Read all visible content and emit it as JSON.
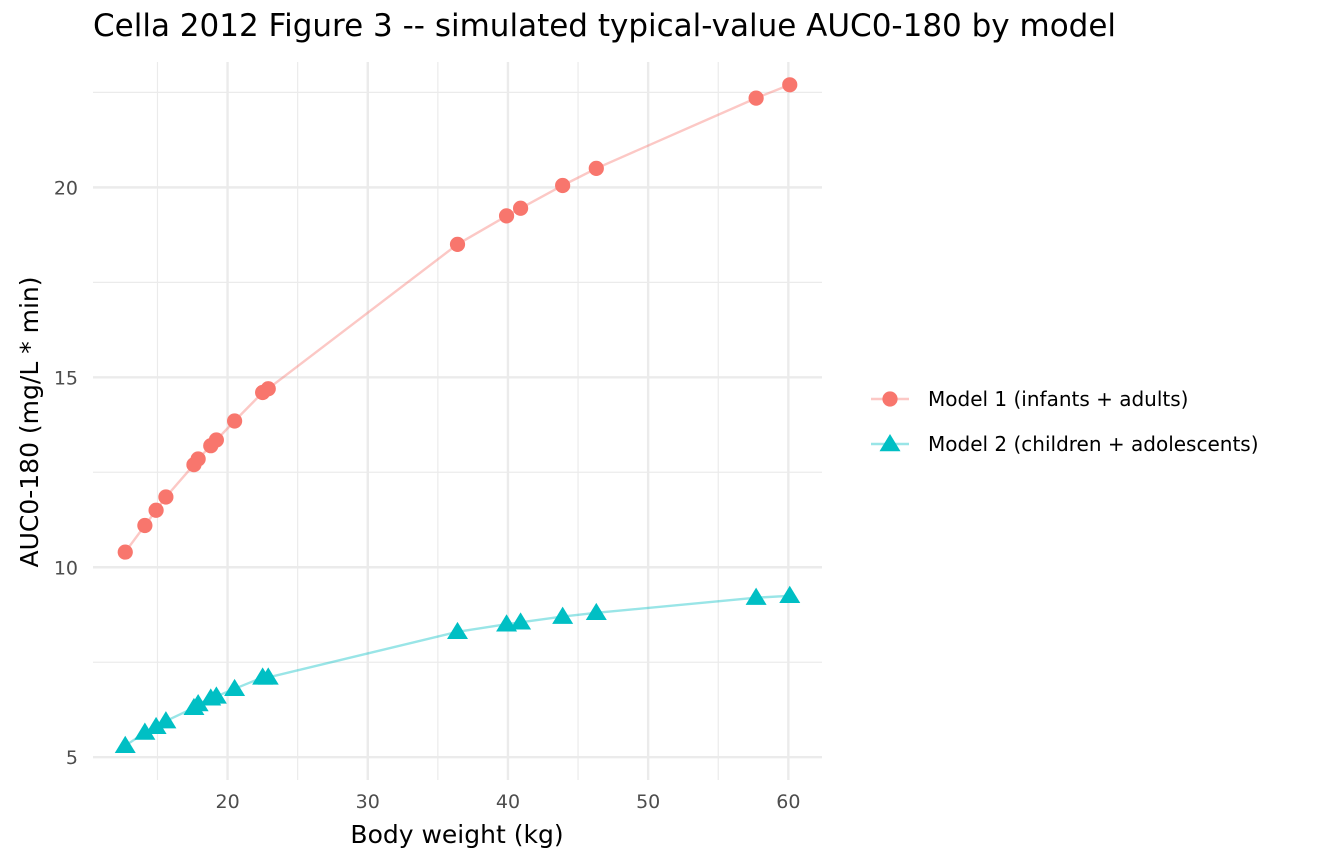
{
  "chart_data": {
    "type": "line",
    "title": "Cella 2012 Figure 3 -- simulated typical-value AUC0-180 by model",
    "xlabel": "Body weight (kg)",
    "ylabel": "AUC0-180 (mg/L * min)",
    "xlim": [
      10.4,
      62.4
    ],
    "ylim": [
      4.4,
      23.3
    ],
    "x_ticks": [
      20,
      30,
      40,
      50,
      60
    ],
    "y_ticks": [
      5,
      10,
      15,
      20
    ],
    "grid": true,
    "legend_position": "right",
    "series": [
      {
        "name": "Model 1 (infants + adults)",
        "color": "#F8766D",
        "marker": "circle",
        "points": [
          [
            12.7,
            10.4
          ],
          [
            14.1,
            11.1
          ],
          [
            14.9,
            11.5
          ],
          [
            15.6,
            11.85
          ],
          [
            17.6,
            12.7
          ],
          [
            17.9,
            12.85
          ],
          [
            18.8,
            13.2
          ],
          [
            19.2,
            13.35
          ],
          [
            20.5,
            13.85
          ],
          [
            22.5,
            14.6
          ],
          [
            22.9,
            14.7
          ],
          [
            36.4,
            18.5
          ],
          [
            39.9,
            19.25
          ],
          [
            40.9,
            19.45
          ],
          [
            43.9,
            20.05
          ],
          [
            46.3,
            20.5
          ],
          [
            57.7,
            22.35
          ],
          [
            60.1,
            22.7
          ]
        ]
      },
      {
        "name": "Model 2 (children + adolescents)",
        "color": "#00BFC4",
        "marker": "triangle",
        "points": [
          [
            12.7,
            5.3
          ],
          [
            14.1,
            5.65
          ],
          [
            14.9,
            5.8
          ],
          [
            15.6,
            5.95
          ],
          [
            17.6,
            6.3
          ],
          [
            17.9,
            6.4
          ],
          [
            18.8,
            6.55
          ],
          [
            19.2,
            6.6
          ],
          [
            20.5,
            6.8
          ],
          [
            22.5,
            7.1
          ],
          [
            22.9,
            7.1
          ],
          [
            36.4,
            8.3
          ],
          [
            39.9,
            8.5
          ],
          [
            40.9,
            8.55
          ],
          [
            43.9,
            8.7
          ],
          [
            46.3,
            8.8
          ],
          [
            57.7,
            9.2
          ],
          [
            60.1,
            9.25
          ]
        ]
      }
    ]
  }
}
